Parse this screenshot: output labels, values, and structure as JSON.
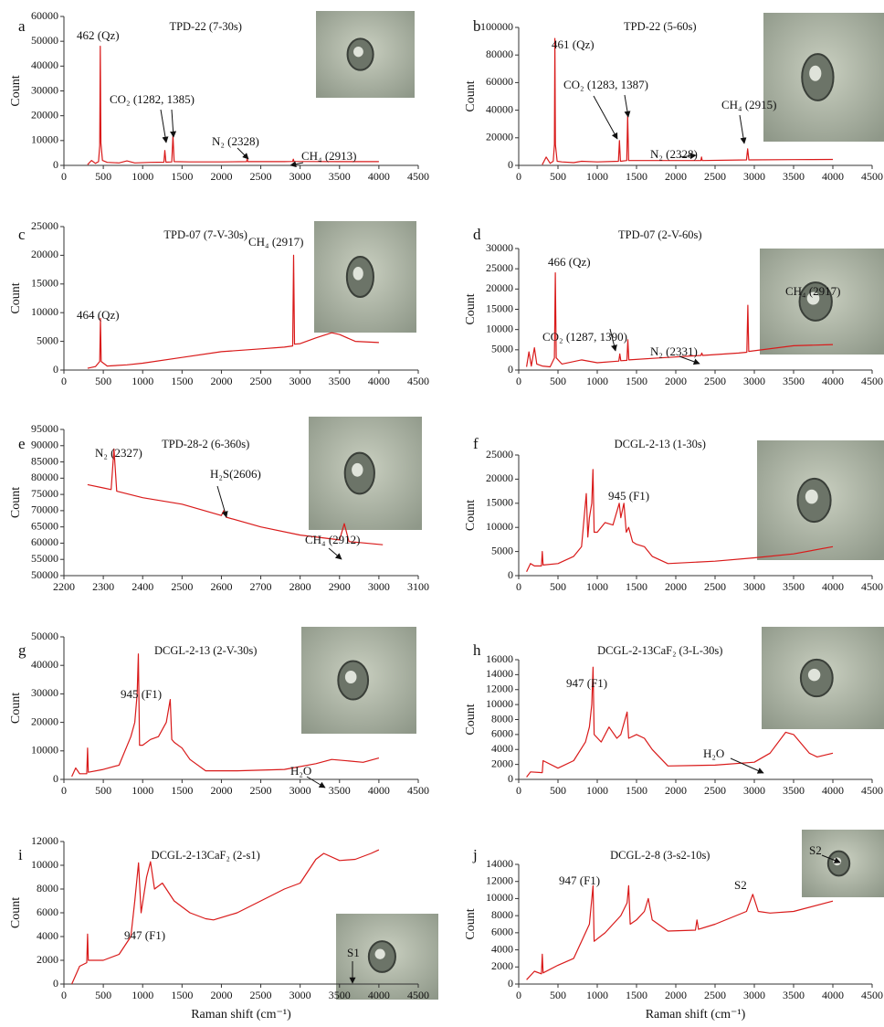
{
  "chart_data": [
    {
      "type": "line",
      "panel": "a",
      "title": "TPD-22 (7-30s)",
      "ylabel": "Count",
      "color": "#d91a1a",
      "xlim": [
        0,
        4500
      ],
      "xticks": [
        0,
        500,
        1000,
        1500,
        2000,
        2500,
        3000,
        3500,
        4000,
        4500
      ],
      "ylim": [
        0,
        60000
      ],
      "yticks": [
        0,
        10000,
        20000,
        30000,
        40000,
        50000,
        60000
      ],
      "x": [
        300,
        350,
        400,
        440,
        455,
        462,
        470,
        490,
        550,
        700,
        800,
        900,
        1100,
        1270,
        1282,
        1295,
        1370,
        1385,
        1400,
        1600,
        2000,
        2320,
        2328,
        2336,
        2800,
        2905,
        2913,
        2921,
        3500,
        4000
      ],
      "values": [
        300,
        2000,
        800,
        1500,
        8000,
        48000,
        9000,
        2000,
        1200,
        1000,
        1800,
        1000,
        1200,
        1300,
        6000,
        1300,
        1400,
        12000,
        1500,
        1400,
        1400,
        1500,
        2500,
        1500,
        1500,
        1600,
        2500,
        1600,
        1500,
        1500
      ],
      "annotations": [
        "462 (Qz)",
        "CO₂ (1282, 1385)",
        "N₂ (2328)",
        "CH₄ (2913)"
      ]
    },
    {
      "type": "line",
      "panel": "b",
      "title": "TPD-22 (5-60s)",
      "ylabel": "Count",
      "color": "#d91a1a",
      "xlim": [
        0,
        4500
      ],
      "xticks": [
        0,
        500,
        1000,
        1500,
        2000,
        2500,
        3000,
        3500,
        4000,
        4500
      ],
      "ylim": [
        0,
        100000
      ],
      "yticks": [
        0,
        20000,
        40000,
        60000,
        80000,
        100000
      ],
      "x": [
        300,
        350,
        400,
        440,
        455,
        461,
        468,
        490,
        550,
        700,
        800,
        1000,
        1270,
        1283,
        1295,
        1375,
        1387,
        1400,
        1800,
        2320,
        2328,
        2336,
        2900,
        2915,
        2930,
        3500,
        4000
      ],
      "values": [
        500,
        6000,
        1500,
        3000,
        15000,
        92000,
        15000,
        3000,
        2500,
        2000,
        3000,
        2500,
        3000,
        18000,
        3000,
        3500,
        36000,
        3500,
        3500,
        3500,
        6000,
        3500,
        4000,
        12000,
        4000,
        4200,
        4300
      ],
      "annotations": [
        "461 (Qz)",
        "CO₂ (1283, 1387)",
        "N₂ (2328)",
        "CH₄ (2915)"
      ]
    },
    {
      "type": "line",
      "panel": "c",
      "title": "TPD-07 (7-V-30s)",
      "ylabel": "Count",
      "color": "#d91a1a",
      "xlim": [
        0,
        4500
      ],
      "xticks": [
        0,
        500,
        1000,
        1500,
        2000,
        2500,
        3000,
        3500,
        4000,
        4500
      ],
      "ylim": [
        0,
        25000
      ],
      "yticks": [
        0,
        5000,
        10000,
        15000,
        20000,
        25000
      ],
      "x": [
        300,
        400,
        455,
        464,
        473,
        550,
        800,
        1000,
        1500,
        2000,
        2500,
        2800,
        2905,
        2917,
        2929,
        3000,
        3200,
        3400,
        3500,
        3700,
        4000
      ],
      "values": [
        300,
        600,
        1500,
        9000,
        1500,
        700,
        900,
        1200,
        2200,
        3200,
        3700,
        4000,
        4200,
        20000,
        4500,
        4600,
        5600,
        6500,
        6200,
        5000,
        4800
      ],
      "annotations": [
        "464 (Qz)",
        "CH₄ (2917)"
      ]
    },
    {
      "type": "line",
      "panel": "d",
      "title": "TPD-07 (2-V-60s)",
      "ylabel": "Count",
      "color": "#d91a1a",
      "xlim": [
        0,
        4500
      ],
      "xticks": [
        0,
        500,
        1000,
        1500,
        2000,
        2500,
        3000,
        3500,
        4000,
        4500
      ],
      "ylim": [
        0,
        30000
      ],
      "yticks": [
        0,
        5000,
        10000,
        15000,
        20000,
        25000,
        30000
      ],
      "x": [
        100,
        130,
        160,
        200,
        230,
        300,
        400,
        455,
        466,
        478,
        550,
        800,
        1000,
        1275,
        1287,
        1300,
        1378,
        1390,
        1402,
        1800,
        2320,
        2331,
        2342,
        2800,
        2905,
        2917,
        2929,
        3500,
        4000
      ],
      "values": [
        800,
        4500,
        1000,
        5500,
        1500,
        1000,
        800,
        3000,
        24000,
        3000,
        1500,
        2500,
        1800,
        2200,
        4000,
        2300,
        2400,
        7500,
        2500,
        3000,
        3600,
        4200,
        3600,
        4200,
        4400,
        16000,
        4600,
        6000,
        6300
      ],
      "annotations": [
        "466 (Qz)",
        "CO₂ (1287, 1390)",
        "N₂ (2331)",
        "CH₄ (2917)"
      ]
    },
    {
      "type": "line",
      "panel": "e",
      "title": "TPD-28-2 (6-360s)",
      "ylabel": "Count",
      "color": "#d91a1a",
      "xlim": [
        2200,
        3100
      ],
      "xticks": [
        2200,
        2300,
        2400,
        2500,
        2600,
        2700,
        2800,
        2900,
        3000,
        3100
      ],
      "ylim": [
        50000,
        95000
      ],
      "yticks": [
        50000,
        55000,
        60000,
        65000,
        70000,
        75000,
        80000,
        85000,
        90000,
        95000
      ],
      "x": [
        2260,
        2300,
        2320,
        2327,
        2334,
        2400,
        2500,
        2600,
        2606,
        2612,
        2700,
        2800,
        2900,
        2912,
        2924,
        3010
      ],
      "values": [
        78000,
        77000,
        76500,
        89000,
        76000,
        74000,
        72000,
        68500,
        70000,
        68000,
        65000,
        62500,
        61000,
        66000,
        60500,
        59500
      ],
      "annotations": [
        "N₂ (2327)",
        "H₂S(2606)",
        "CH₄ (2912)"
      ]
    },
    {
      "type": "line",
      "panel": "f",
      "title": "DCGL-2-13 (1-30s)",
      "ylabel": "Count",
      "color": "#d91a1a",
      "xlim": [
        0,
        4500
      ],
      "xticks": [
        0,
        500,
        1000,
        1500,
        2000,
        2500,
        3000,
        3500,
        4000,
        4500
      ],
      "ylim": [
        0,
        25000
      ],
      "yticks": [
        0,
        5000,
        10000,
        15000,
        20000,
        25000
      ],
      "x": [
        100,
        150,
        200,
        290,
        300,
        310,
        500,
        700,
        800,
        860,
        880,
        900,
        930,
        945,
        960,
        1000,
        1100,
        1200,
        1280,
        1300,
        1340,
        1370,
        1400,
        1450,
        1500,
        1600,
        1700,
        1900,
        2500,
        3000,
        3500,
        4000
      ],
      "values": [
        800,
        2500,
        2000,
        2000,
        5000,
        2200,
        2500,
        4000,
        6000,
        17000,
        8000,
        12000,
        15000,
        22000,
        9000,
        9000,
        11000,
        10500,
        15000,
        12000,
        15000,
        9000,
        10000,
        7000,
        6500,
        6000,
        4000,
        2500,
        3000,
        3700,
        4500,
        6000
      ],
      "annotations": [
        "945 (F1)"
      ]
    },
    {
      "type": "line",
      "panel": "g",
      "title": "DCGL-2-13 (2-V-30s)",
      "ylabel": "Count",
      "color": "#d91a1a",
      "xlim": [
        0,
        4500
      ],
      "xticks": [
        0,
        500,
        1000,
        1500,
        2000,
        2500,
        3000,
        3500,
        4000,
        4500
      ],
      "ylim": [
        0,
        50000
      ],
      "yticks": [
        0,
        10000,
        20000,
        30000,
        40000,
        50000
      ],
      "x": [
        100,
        150,
        200,
        290,
        300,
        310,
        500,
        700,
        850,
        900,
        930,
        945,
        960,
        1000,
        1100,
        1200,
        1300,
        1350,
        1370,
        1400,
        1500,
        1600,
        1800,
        2200,
        2800,
        3200,
        3400,
        3600,
        3800,
        4000
      ],
      "values": [
        1000,
        4000,
        2000,
        2000,
        11000,
        2500,
        3500,
        5000,
        15000,
        20000,
        30000,
        44000,
        12000,
        12000,
        14000,
        15000,
        20000,
        28000,
        14000,
        13000,
        11000,
        7000,
        3000,
        3000,
        3500,
        5500,
        7000,
        6500,
        6000,
        7500
      ],
      "annotations": [
        "945 (F1)",
        "H₂O"
      ]
    },
    {
      "type": "line",
      "panel": "h",
      "title": "DCGL-2-13CaF₂ (3-L-30s)",
      "ylabel": "Count",
      "color": "#d91a1a",
      "xlim": [
        0,
        4500
      ],
      "xticks": [
        0,
        500,
        1000,
        1500,
        2000,
        2500,
        3000,
        3500,
        4000,
        4500
      ],
      "ylim": [
        0,
        16000
      ],
      "yticks": [
        0,
        2000,
        4000,
        6000,
        8000,
        10000,
        12000,
        14000,
        16000
      ],
      "x": [
        100,
        150,
        300,
        310,
        500,
        700,
        850,
        900,
        930,
        947,
        960,
        1050,
        1150,
        1250,
        1300,
        1380,
        1400,
        1500,
        1600,
        1700,
        1900,
        2500,
        3000,
        3200,
        3400,
        3500,
        3700,
        3800,
        4000
      ],
      "values": [
        300,
        1000,
        900,
        2500,
        1500,
        2500,
        5000,
        7000,
        10000,
        15000,
        6000,
        5000,
        7000,
        5500,
        6000,
        9000,
        5500,
        6000,
        5500,
        4000,
        1800,
        1900,
        2300,
        3500,
        6300,
        6000,
        3500,
        3000,
        3500
      ],
      "annotations": [
        "947 (F1)",
        "H₂O"
      ]
    },
    {
      "type": "line",
      "panel": "i",
      "title": "DCGL-2-13CaF₂ (2-s1)",
      "ylabel": "Count",
      "xlabel": "Raman shift (cm⁻¹)",
      "color": "#d91a1a",
      "xlim": [
        0,
        4500
      ],
      "xticks": [
        0,
        500,
        1000,
        1500,
        2000,
        2500,
        3000,
        3500,
        4000,
        4500
      ],
      "ylim": [
        0,
        12000
      ],
      "yticks": [
        0,
        2000,
        4000,
        6000,
        8000,
        10000,
        12000
      ],
      "x": [
        100,
        200,
        290,
        300,
        310,
        500,
        700,
        850,
        900,
        947,
        980,
        1050,
        1100,
        1150,
        1250,
        1400,
        1500,
        1600,
        1800,
        1900,
        2200,
        2500,
        2800,
        3000,
        3200,
        3300,
        3500,
        3700,
        3900,
        4000
      ],
      "values": [
        0,
        1500,
        1800,
        4200,
        2000,
        2000,
        2500,
        4000,
        7000,
        10200,
        6000,
        9000,
        10300,
        8000,
        8500,
        7000,
        6500,
        6000,
        5500,
        5400,
        6000,
        7000,
        8000,
        8500,
        10500,
        11000,
        10400,
        10500,
        11000,
        11300
      ],
      "annotations": [
        "947 (F1)",
        "S1"
      ]
    },
    {
      "type": "line",
      "panel": "j",
      "title": "DCGL-2-8 (3-s2-10s)",
      "ylabel": "Count",
      "xlabel": "Raman shift (cm⁻¹)",
      "color": "#d91a1a",
      "xlim": [
        0,
        4500
      ],
      "xticks": [
        0,
        500,
        1000,
        1500,
        2000,
        2500,
        3000,
        3500,
        4000,
        4500
      ],
      "ylim": [
        0,
        14000
      ],
      "yticks": [
        0,
        2000,
        4000,
        6000,
        8000,
        10000,
        12000,
        14000
      ],
      "x": [
        100,
        200,
        290,
        300,
        310,
        500,
        700,
        850,
        900,
        947,
        960,
        1100,
        1200,
        1300,
        1380,
        1400,
        1420,
        1500,
        1600,
        1650,
        1700,
        1900,
        2250,
        2270,
        2290,
        2500,
        2900,
        2980,
        3050,
        3200,
        3500,
        4000
      ],
      "values": [
        500,
        1500,
        1200,
        3500,
        1300,
        2200,
        3000,
        6000,
        7000,
        11500,
        5000,
        6000,
        7000,
        8000,
        9500,
        11500,
        7000,
        7500,
        8500,
        10000,
        7500,
        6200,
        6300,
        7500,
        6400,
        7000,
        8500,
        10500,
        8500,
        8300,
        8500,
        9700
      ],
      "annotations": [
        "947 (F1)",
        "S2",
        "S2"
      ]
    }
  ]
}
